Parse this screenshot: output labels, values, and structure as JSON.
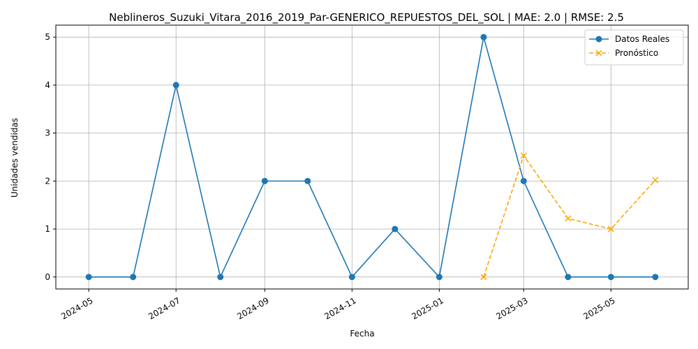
{
  "chart_data": {
    "type": "line",
    "title": "Neblineros_Suzuki_Vitara_2016_2019_Par-GENERICO_REPUESTOS_DEL_SOL | MAE: 2.0 | RMSE: 2.5",
    "xlabel": "Fecha",
    "ylabel": "Unidades vendidas",
    "x_ticks": [
      "2024-05",
      "2024-07",
      "2024-09",
      "2024-11",
      "2025-01",
      "2025-03",
      "2025-05"
    ],
    "y_ticks": [
      0,
      1,
      2,
      3,
      4,
      5
    ],
    "ylim": [
      -0.25,
      5.25
    ],
    "xlim": [
      "2024-04-08",
      "2025-06-24"
    ],
    "grid": true,
    "legend_position": "top-right",
    "series": [
      {
        "name": "Datos Reales",
        "color": "#1f77b4",
        "style": "solid",
        "marker": "circle",
        "x": [
          "2024-05-01",
          "2024-06-01",
          "2024-07-01",
          "2024-08-01",
          "2024-09-01",
          "2024-10-01",
          "2024-11-01",
          "2024-12-01",
          "2025-01-01",
          "2025-02-01",
          "2025-03-01",
          "2025-04-01",
          "2025-05-01",
          "2025-06-01"
        ],
        "values": [
          0,
          0,
          4,
          0,
          2,
          2,
          0,
          1,
          0,
          5,
          2,
          0,
          0,
          0
        ]
      },
      {
        "name": "Pronóstico",
        "color": "#ffa500",
        "style": "dashed",
        "marker": "x",
        "x": [
          "2025-02-01",
          "2025-03-01",
          "2025-04-01",
          "2025-05-01",
          "2025-06-01"
        ],
        "values": [
          0,
          2.53,
          1.22,
          1.0,
          2.02
        ]
      }
    ]
  }
}
